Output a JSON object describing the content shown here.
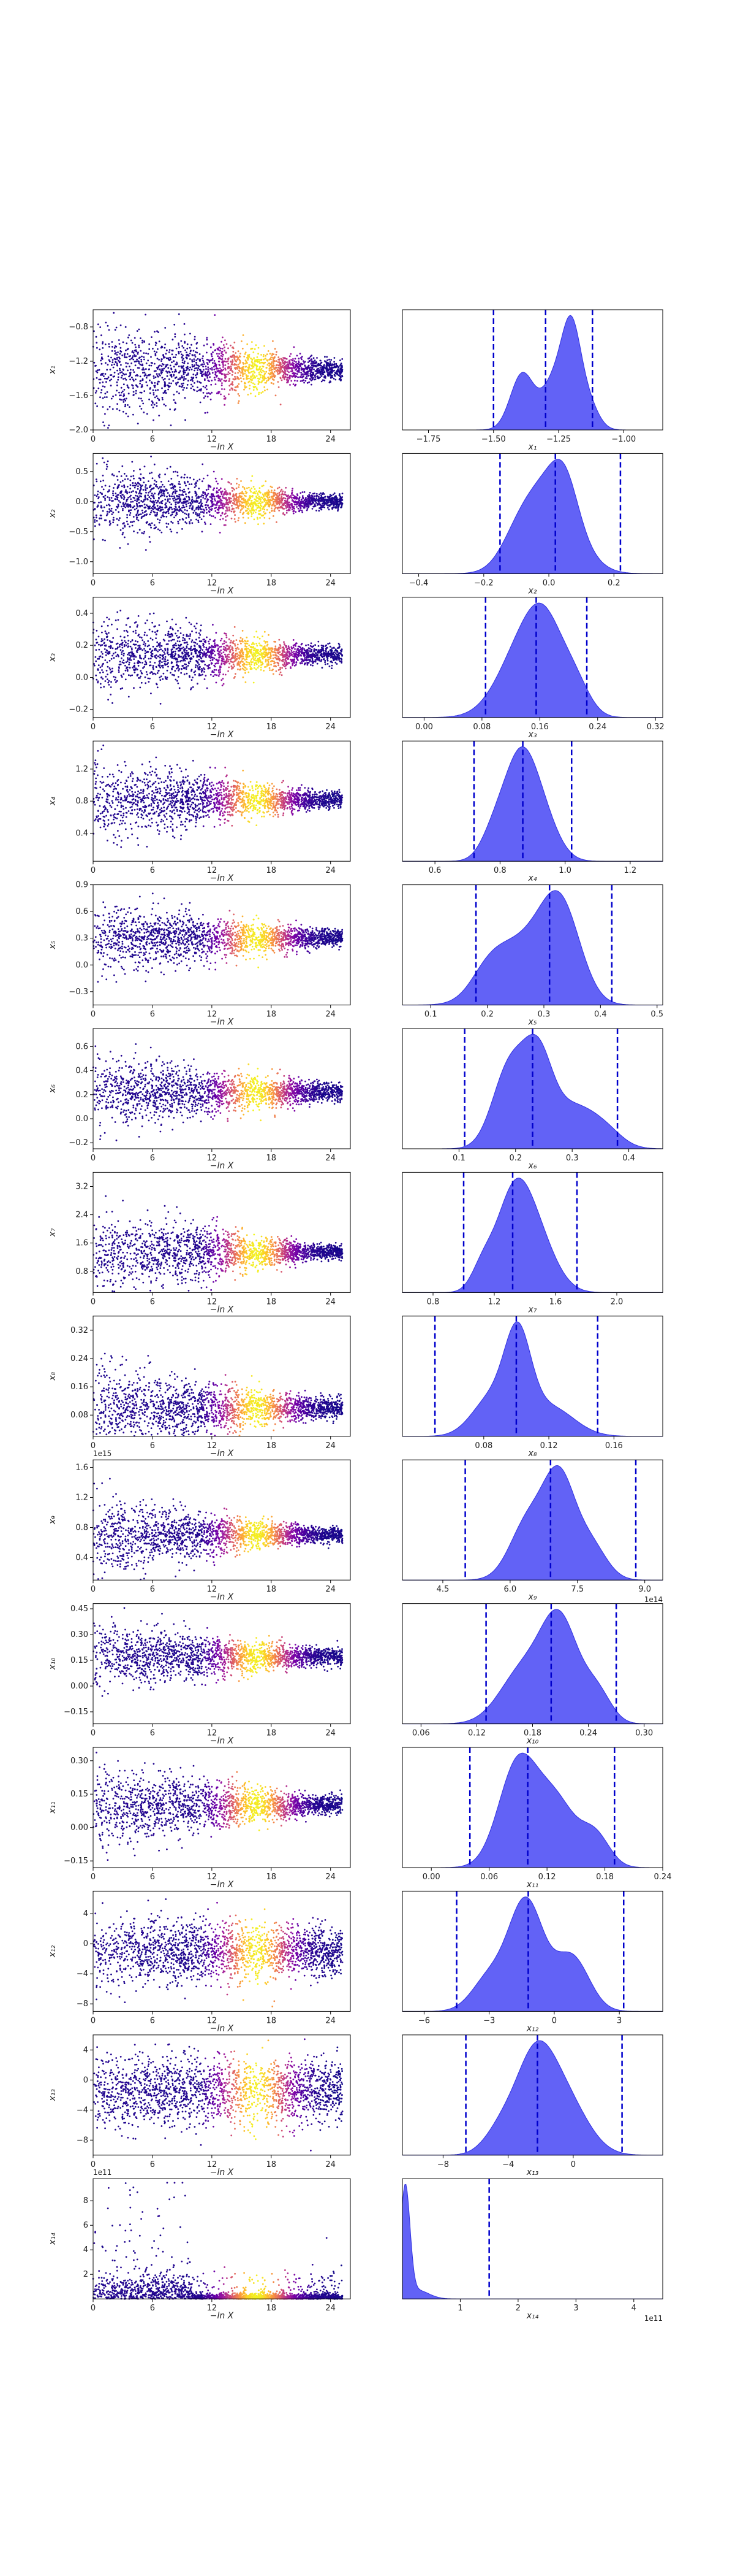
{
  "figure": {
    "x_label_left": "−ln X",
    "scatter_xticks": [
      "0",
      "6",
      "12",
      "18",
      "24"
    ],
    "colormap": [
      "#0d0887",
      "#46039f",
      "#7201a8",
      "#9c179e",
      "#bd3786",
      "#d8576b",
      "#ed7953",
      "#fb9f3a",
      "#fdca26",
      "#f0f921"
    ],
    "scatter_points_per_panel": 2000,
    "kde_fill_color": "#5a5af5",
    "quantile_line_color": "#0000cc"
  },
  "chart_data": [
    {
      "type": "scatter",
      "param": "x1",
      "ylabel": "x₁",
      "y_ticks": [
        "−0.8",
        "−1.2",
        "−1.6",
        "−2.0"
      ],
      "y_tick_values": [
        -0.8,
        -1.2,
        -1.6,
        -2.0
      ],
      "ylim": [
        -2.0,
        -0.6
      ],
      "xlim": [
        0,
        26
      ],
      "mean": -1.3,
      "spread_start": 0.3,
      "spread_end": 0.06,
      "x_offset": ""
    },
    {
      "type": "area",
      "param": "x1",
      "xlabel": "x₁",
      "x_ticks": [
        "−1.75",
        "−1.50",
        "−1.25",
        "−1.00"
      ],
      "x_tick_values": [
        -1.75,
        -1.5,
        -1.25,
        -1.0
      ],
      "xlim": [
        -1.85,
        -0.85
      ],
      "quantiles": [
        -1.5,
        -1.3,
        -1.12
      ],
      "peaks": [
        {
          "mu": -1.39,
          "sd": 0.045,
          "h": 0.7
        },
        {
          "mu": -1.26,
          "sd": 0.05,
          "h": 0.65
        },
        {
          "mu": -1.2,
          "sd": 0.035,
          "h": 1.0
        },
        {
          "mu": -1.14,
          "sd": 0.04,
          "h": 0.35
        }
      ],
      "x_offset": ""
    },
    {
      "type": "scatter",
      "param": "x2",
      "ylabel": "x₂",
      "y_ticks": [
        "0.5",
        "0.0",
        "−0.5",
        "−1.0"
      ],
      "y_tick_values": [
        0.5,
        0.0,
        -0.5,
        -1.0
      ],
      "ylim": [
        -1.2,
        0.8
      ],
      "xlim": [
        0,
        26
      ],
      "mean": 0.0,
      "spread_start": 0.3,
      "spread_end": 0.06,
      "x_offset": ""
    },
    {
      "type": "area",
      "param": "x2",
      "xlabel": "x₂",
      "x_ticks": [
        "−0.4",
        "−0.2",
        "0.0",
        "0.2"
      ],
      "x_tick_values": [
        -0.4,
        -0.2,
        0.0,
        0.2
      ],
      "xlim": [
        -0.45,
        0.35
      ],
      "quantiles": [
        -0.15,
        0.02,
        0.22
      ],
      "peaks": [
        {
          "mu": 0.0,
          "sd": 0.08,
          "h": 0.8
        },
        {
          "mu": 0.05,
          "sd": 0.04,
          "h": 0.3
        },
        {
          "mu": -0.1,
          "sd": 0.05,
          "h": 0.15
        }
      ],
      "x_offset": ""
    },
    {
      "type": "scatter",
      "param": "x3",
      "ylabel": "x₃",
      "y_ticks": [
        "0.4",
        "0.2",
        "0.0",
        "−0.2"
      ],
      "y_tick_values": [
        0.4,
        0.2,
        0.0,
        -0.2
      ],
      "ylim": [
        -0.25,
        0.5
      ],
      "xlim": [
        0,
        26
      ],
      "mean": 0.14,
      "spread_start": 0.12,
      "spread_end": 0.03,
      "x_offset": ""
    },
    {
      "type": "area",
      "param": "x3",
      "xlabel": "x₃",
      "x_ticks": [
        "0.00",
        "0.08",
        "0.16",
        "0.24",
        "0.32"
      ],
      "x_tick_values": [
        0.0,
        0.08,
        0.16,
        0.24,
        0.32
      ],
      "xlim": [
        -0.03,
        0.33
      ],
      "quantiles": [
        0.085,
        0.155,
        0.225
      ],
      "peaks": [
        {
          "mu": 0.14,
          "sd": 0.035,
          "h": 0.7
        },
        {
          "mu": 0.17,
          "sd": 0.025,
          "h": 0.5
        },
        {
          "mu": 0.21,
          "sd": 0.02,
          "h": 0.25
        }
      ],
      "x_offset": ""
    },
    {
      "type": "scatter",
      "param": "x4",
      "ylabel": "x₄",
      "y_ticks": [
        "1.2",
        "0.8",
        "0.4"
      ],
      "y_tick_values": [
        1.2,
        0.8,
        0.4
      ],
      "ylim": [
        0.05,
        1.55
      ],
      "xlim": [
        0,
        26
      ],
      "mean": 0.82,
      "spread_start": 0.25,
      "spread_end": 0.05,
      "x_offset": ""
    },
    {
      "type": "area",
      "param": "x4",
      "xlabel": "x₄",
      "x_ticks": [
        "0.6",
        "0.8",
        "1.0",
        "1.2"
      ],
      "x_tick_values": [
        0.6,
        0.8,
        1.0,
        1.2
      ],
      "xlim": [
        0.5,
        1.3
      ],
      "quantiles": [
        0.72,
        0.87,
        1.02
      ],
      "peaks": [
        {
          "mu": 0.86,
          "sd": 0.05,
          "h": 1.0
        },
        {
          "mu": 0.93,
          "sd": 0.05,
          "h": 0.4
        },
        {
          "mu": 0.78,
          "sd": 0.04,
          "h": 0.25
        }
      ],
      "x_offset": ""
    },
    {
      "type": "scatter",
      "param": "x5",
      "ylabel": "x₅",
      "y_ticks": [
        "0.9",
        "0.6",
        "0.3",
        "0.0",
        "−0.3"
      ],
      "y_tick_values": [
        0.9,
        0.6,
        0.3,
        0.0,
        -0.3
      ],
      "ylim": [
        -0.45,
        0.9
      ],
      "xlim": [
        0,
        26
      ],
      "mean": 0.3,
      "spread_start": 0.2,
      "spread_end": 0.05,
      "x_offset": ""
    },
    {
      "type": "area",
      "param": "x5",
      "xlabel": "x₅",
      "x_ticks": [
        "0.1",
        "0.2",
        "0.3",
        "0.4",
        "0.5"
      ],
      "x_tick_values": [
        0.1,
        0.2,
        0.3,
        0.4,
        0.5
      ],
      "xlim": [
        0.05,
        0.51
      ],
      "quantiles": [
        0.18,
        0.31,
        0.42
      ],
      "peaks": [
        {
          "mu": 0.33,
          "sd": 0.035,
          "h": 0.9
        },
        {
          "mu": 0.26,
          "sd": 0.05,
          "h": 0.6
        },
        {
          "mu": 0.2,
          "sd": 0.03,
          "h": 0.2
        }
      ],
      "x_offset": ""
    },
    {
      "type": "scatter",
      "param": "x6",
      "ylabel": "x₆",
      "y_ticks": [
        "0.6",
        "0.4",
        "0.2",
        "0.0",
        "−0.2"
      ],
      "y_tick_values": [
        0.6,
        0.4,
        0.2,
        0.0,
        -0.2
      ],
      "ylim": [
        -0.25,
        0.75
      ],
      "xlim": [
        0,
        26
      ],
      "mean": 0.22,
      "spread_start": 0.15,
      "spread_end": 0.04,
      "x_offset": ""
    },
    {
      "type": "area",
      "param": "x6",
      "xlabel": "x₆",
      "x_ticks": [
        "0.1",
        "0.2",
        "0.3",
        "0.4"
      ],
      "x_tick_values": [
        0.1,
        0.2,
        0.3,
        0.4
      ],
      "xlim": [
        0.0,
        0.46
      ],
      "quantiles": [
        0.11,
        0.23,
        0.38
      ],
      "peaks": [
        {
          "mu": 0.19,
          "sd": 0.03,
          "h": 0.9
        },
        {
          "mu": 0.24,
          "sd": 0.025,
          "h": 0.85
        },
        {
          "mu": 0.3,
          "sd": 0.04,
          "h": 0.45
        },
        {
          "mu": 0.36,
          "sd": 0.03,
          "h": 0.15
        }
      ],
      "x_offset": ""
    },
    {
      "type": "scatter",
      "param": "x7",
      "ylabel": "x₇",
      "y_ticks": [
        "3.2",
        "2.4",
        "1.6",
        "0.8"
      ],
      "y_tick_values": [
        3.2,
        2.4,
        1.6,
        0.8
      ],
      "ylim": [
        0.2,
        3.6
      ],
      "xlim": [
        0,
        26
      ],
      "mean": 1.35,
      "spread_start": 0.6,
      "spread_end": 0.1,
      "x_offset": ""
    },
    {
      "type": "area",
      "param": "x7",
      "xlabel": "x₇",
      "x_ticks": [
        "0.8",
        "1.2",
        "1.6",
        "2.0"
      ],
      "x_tick_values": [
        0.8,
        1.2,
        1.6,
        2.0
      ],
      "xlim": [
        0.6,
        2.3
      ],
      "quantiles": [
        1.0,
        1.32,
        1.74
      ],
      "peaks": [
        {
          "mu": 1.33,
          "sd": 0.12,
          "h": 1.0
        },
        {
          "mu": 1.5,
          "sd": 0.12,
          "h": 0.4
        },
        {
          "mu": 1.12,
          "sd": 0.07,
          "h": 0.2
        }
      ],
      "x_offset": ""
    },
    {
      "type": "scatter",
      "param": "x8",
      "ylabel": "x₈",
      "y_ticks": [
        "0.32",
        "0.24",
        "0.16",
        "0.08"
      ],
      "y_tick_values": [
        0.32,
        0.24,
        0.16,
        0.08
      ],
      "ylim": [
        0.02,
        0.36
      ],
      "xlim": [
        0,
        26
      ],
      "mean": 0.1,
      "spread_start": 0.06,
      "spread_end": 0.015,
      "x_offset": ""
    },
    {
      "type": "area",
      "param": "x8",
      "xlabel": "x₈",
      "x_ticks": [
        "0.08",
        "0.12",
        "0.16"
      ],
      "x_tick_values": [
        0.08,
        0.12,
        0.16
      ],
      "xlim": [
        0.03,
        0.19
      ],
      "quantiles": [
        0.05,
        0.1,
        0.15
      ],
      "peaks": [
        {
          "mu": 0.101,
          "sd": 0.008,
          "h": 1.0
        },
        {
          "mu": 0.085,
          "sd": 0.012,
          "h": 0.45
        },
        {
          "mu": 0.12,
          "sd": 0.015,
          "h": 0.35
        }
      ],
      "x_offset": ""
    },
    {
      "type": "scatter",
      "param": "x9",
      "ylabel": "x₉",
      "y_ticks": [
        "1.6",
        "1.2",
        "0.8",
        "0.4"
      ],
      "y_tick_values": [
        1.6,
        1.2,
        0.8,
        0.4
      ],
      "ylim": [
        0.1,
        1.7
      ],
      "xlim": [
        0,
        26
      ],
      "mean": 0.7,
      "spread_start": 0.25,
      "spread_end": 0.05,
      "x_offset": "1e15"
    },
    {
      "type": "area",
      "param": "x9",
      "xlabel": "x₉",
      "x_ticks": [
        "4.5",
        "6.0",
        "7.5",
        "9.0"
      ],
      "x_tick_values": [
        4.5,
        6.0,
        7.5,
        9.0
      ],
      "xlim": [
        3.6,
        9.4
      ],
      "quantiles": [
        5.0,
        6.9,
        8.8
      ],
      "peaks": [
        {
          "mu": 7.1,
          "sd": 0.35,
          "h": 1.0
        },
        {
          "mu": 6.4,
          "sd": 0.4,
          "h": 0.6
        },
        {
          "mu": 7.8,
          "sd": 0.35,
          "h": 0.35
        }
      ],
      "x_offset": "1e14"
    },
    {
      "type": "scatter",
      "param": "x10",
      "ylabel": "x₁₀",
      "y_ticks": [
        "0.45",
        "0.30",
        "0.15",
        "0.00",
        "−0.15"
      ],
      "y_tick_values": [
        0.45,
        0.3,
        0.15,
        0.0,
        -0.15
      ],
      "ylim": [
        -0.22,
        0.48
      ],
      "xlim": [
        0,
        26
      ],
      "mean": 0.17,
      "spread_start": 0.1,
      "spread_end": 0.025,
      "x_offset": ""
    },
    {
      "type": "area",
      "param": "x10",
      "xlabel": "x₁₀",
      "x_ticks": [
        "0.06",
        "0.12",
        "0.18",
        "0.24",
        "0.30"
      ],
      "x_tick_values": [
        0.06,
        0.12,
        0.18,
        0.24,
        0.3
      ],
      "xlim": [
        0.04,
        0.32
      ],
      "quantiles": [
        0.13,
        0.2,
        0.27
      ],
      "peaks": [
        {
          "mu": 0.21,
          "sd": 0.02,
          "h": 1.0
        },
        {
          "mu": 0.17,
          "sd": 0.025,
          "h": 0.55
        },
        {
          "mu": 0.25,
          "sd": 0.015,
          "h": 0.3
        }
      ],
      "x_offset": ""
    },
    {
      "type": "scatter",
      "param": "x11",
      "ylabel": "x₁₁",
      "y_ticks": [
        "0.30",
        "0.15",
        "0.00",
        "−0.15"
      ],
      "y_tick_values": [
        0.3,
        0.15,
        0.0,
        -0.15
      ],
      "ylim": [
        -0.18,
        0.36
      ],
      "xlim": [
        0,
        26
      ],
      "mean": 0.1,
      "spread_start": 0.09,
      "spread_end": 0.02,
      "x_offset": ""
    },
    {
      "type": "area",
      "param": "x11",
      "xlabel": "x₁₁",
      "x_ticks": [
        "0.00",
        "0.06",
        "0.12",
        "0.18",
        "0.24"
      ],
      "x_tick_values": [
        0.0,
        0.06,
        0.12,
        0.18,
        0.24
      ],
      "xlim": [
        -0.03,
        0.24
      ],
      "quantiles": [
        0.04,
        0.1,
        0.19
      ],
      "peaks": [
        {
          "mu": 0.09,
          "sd": 0.02,
          "h": 1.0
        },
        {
          "mu": 0.13,
          "sd": 0.02,
          "h": 0.6
        },
        {
          "mu": 0.17,
          "sd": 0.015,
          "h": 0.3
        }
      ],
      "x_offset": ""
    },
    {
      "type": "scatter",
      "param": "x12",
      "ylabel": "x₁₂",
      "y_ticks": [
        "4",
        "0",
        "−4",
        "−8"
      ],
      "y_tick_values": [
        4,
        0,
        -4,
        -8
      ],
      "ylim": [
        -9,
        7
      ],
      "xlim": [
        0,
        26
      ],
      "mean": -1.0,
      "spread_start": 2.5,
      "spread_end": 1.6,
      "x_offset": ""
    },
    {
      "type": "area",
      "param": "x12",
      "xlabel": "x₁₂",
      "x_ticks": [
        "−6",
        "−3",
        "0",
        "3"
      ],
      "x_tick_values": [
        -6,
        -3,
        0,
        3
      ],
      "xlim": [
        -7,
        5
      ],
      "quantiles": [
        -4.5,
        -1.2,
        3.2
      ],
      "peaks": [
        {
          "mu": -1.3,
          "sd": 0.8,
          "h": 1.0
        },
        {
          "mu": 0.8,
          "sd": 0.8,
          "h": 0.5
        },
        {
          "mu": -3.0,
          "sd": 0.8,
          "h": 0.3
        }
      ],
      "x_offset": ""
    },
    {
      "type": "scatter",
      "param": "x13",
      "ylabel": "x₁₃",
      "y_ticks": [
        "4",
        "0",
        "−4",
        "−8"
      ],
      "y_tick_values": [
        4,
        0,
        -4,
        -8
      ],
      "ylim": [
        -10,
        6
      ],
      "xlim": [
        0,
        26
      ],
      "mean": -1.5,
      "spread_start": 2.6,
      "spread_end": 2.0,
      "x_offset": ""
    },
    {
      "type": "area",
      "param": "x13",
      "xlabel": "x₁₃",
      "x_ticks": [
        "−8",
        "−4",
        "0"
      ],
      "x_tick_values": [
        -8,
        -4,
        0
      ],
      "xlim": [
        -10.5,
        5.5
      ],
      "quantiles": [
        -6.6,
        -2.2,
        3.0
      ],
      "peaks": [
        {
          "mu": -2.4,
          "sd": 1.2,
          "h": 1.0
        },
        {
          "mu": -0.5,
          "sd": 1.4,
          "h": 0.6
        },
        {
          "mu": -4.5,
          "sd": 1.0,
          "h": 0.25
        }
      ],
      "x_offset": ""
    },
    {
      "type": "scatter",
      "param": "x14",
      "ylabel": "x₁₄",
      "y_ticks": [
        "8",
        "6",
        "4",
        "2"
      ],
      "y_tick_values": [
        8,
        6,
        4,
        2
      ],
      "ylim": [
        0,
        9.8
      ],
      "xlim": [
        0,
        26
      ],
      "mean": 0.05,
      "spread_start": 0.15,
      "spread_end": 0.02,
      "x_offset": "1e11"
    },
    {
      "type": "area",
      "param": "x14",
      "xlabel": "x₁₄",
      "x_ticks": [
        "1",
        "2",
        "3",
        "4"
      ],
      "x_tick_values": [
        1,
        2,
        3,
        4
      ],
      "xlim": [
        0,
        4.5
      ],
      "quantiles": [
        1.5
      ],
      "peaks": [
        {
          "mu": 0.05,
          "sd": 0.08,
          "h": 1.0
        },
        {
          "mu": 0.25,
          "sd": 0.2,
          "h": 0.08
        }
      ],
      "x_offset": "1e11"
    }
  ]
}
